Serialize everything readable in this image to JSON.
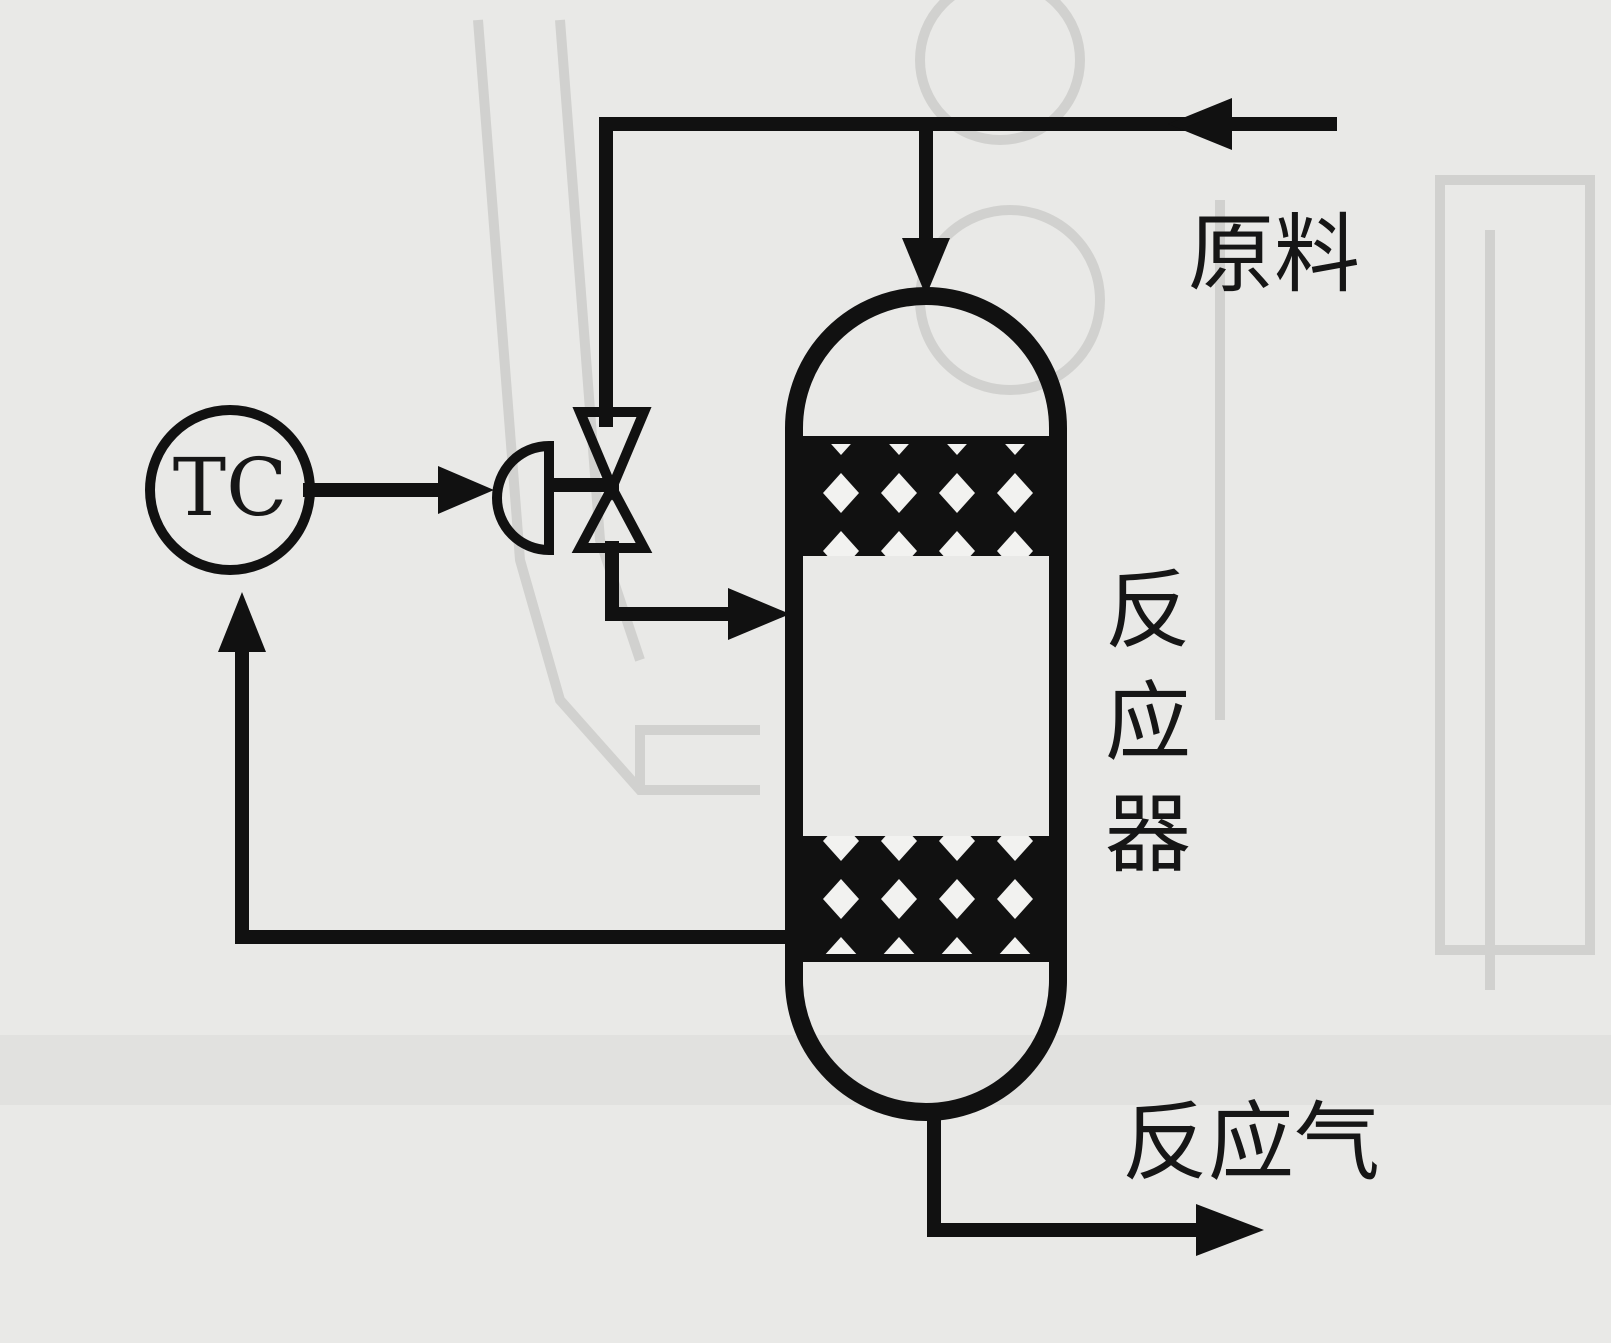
{
  "labels": {
    "feed": "原料",
    "reactor": [
      "反",
      "应",
      "器"
    ],
    "product_gas": "反应气"
  },
  "controller": {
    "tag": "TC"
  },
  "colors": {
    "background": "#e9e9e7",
    "ink": "#111111",
    "bleed_through": "#cfcfcc"
  }
}
